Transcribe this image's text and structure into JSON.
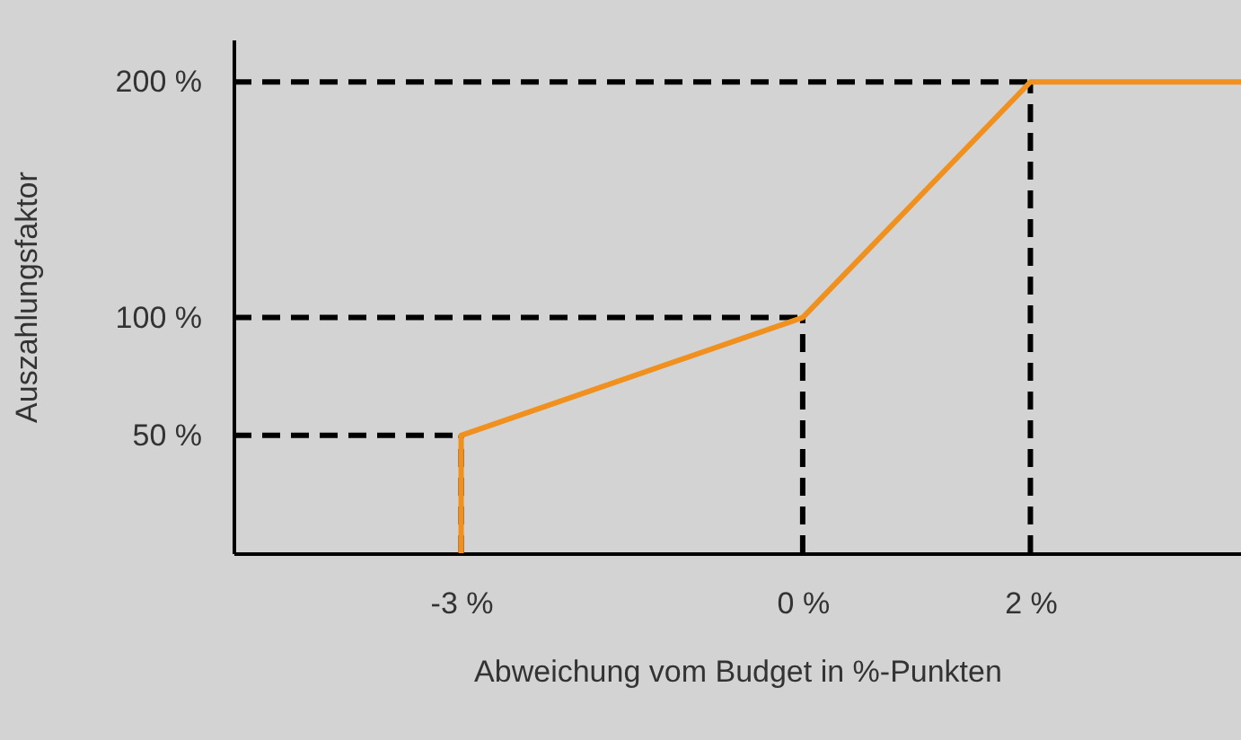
{
  "chart_data": {
    "type": "line",
    "xlabel": "Abweichung vom Budget in %-Punkten",
    "ylabel": "Auszahlungsfaktor",
    "xlim": [
      -5,
      3.85
    ],
    "ylim": [
      0,
      218
    ],
    "xticks": [
      {
        "value": -3,
        "label": "-3 %"
      },
      {
        "value": 0,
        "label": "0 %"
      },
      {
        "value": 2,
        "label": "2 %"
      }
    ],
    "yticks": [
      {
        "value": 50,
        "label": "50 %"
      },
      {
        "value": 100,
        "label": "100 %"
      },
      {
        "value": 200,
        "label": "200 %"
      }
    ],
    "series": [
      {
        "color": "#f0901e",
        "x": [
          -3,
          -3,
          0,
          2,
          3.85
        ],
        "values": [
          0,
          50,
          100,
          200,
          200
        ]
      }
    ],
    "ref_lines": [
      {
        "axis": "y",
        "value": 200,
        "color": "#000000",
        "line_style": "dashed"
      },
      {
        "axis": "y",
        "value": 100,
        "color": "#000000",
        "line_style": "dashed"
      },
      {
        "axis": "y",
        "value": 50,
        "color": "#000000",
        "line_style": "dashed"
      },
      {
        "axis": "x",
        "value": -3,
        "color": "#000000",
        "line_style": "dashed"
      },
      {
        "axis": "x",
        "value": 0,
        "color": "#000000",
        "line_style": "dashed"
      },
      {
        "axis": "x",
        "value": 2,
        "color": "#000000",
        "line_style": "dashed"
      }
    ],
    "grid": false,
    "marker": "none",
    "line_style": "solid"
  }
}
